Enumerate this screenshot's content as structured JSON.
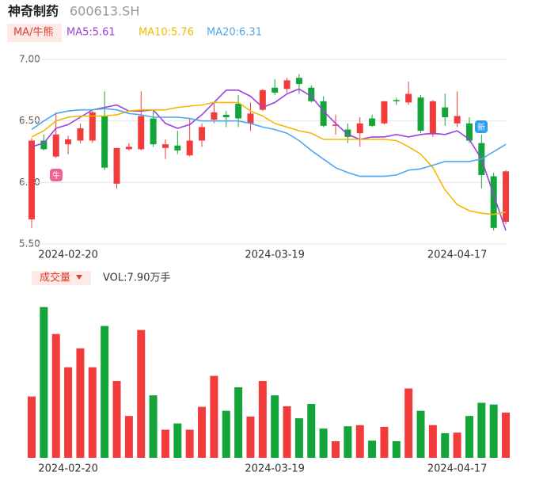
{
  "header": {
    "title": "神奇制药",
    "code": "600613.SH"
  },
  "chart_data": [
    {
      "type": "candlestick",
      "legend_button": "MA/牛熊",
      "annotations": [
        "牛",
        "新"
      ],
      "up_color": "#f23c3c",
      "down_color": "#14a53a",
      "categories": [
        null,
        null,
        null,
        "2024-02-20",
        null,
        null,
        null,
        null,
        null,
        null,
        null,
        null,
        null,
        null,
        null,
        null,
        null,
        null,
        null,
        null,
        "2024-03-19",
        null,
        null,
        null,
        null,
        null,
        null,
        null,
        null,
        null,
        null,
        null,
        null,
        null,
        null,
        "2024-04-17",
        null,
        null,
        null,
        null
      ],
      "open": [
        5.7,
        6.34,
        6.21,
        6.31,
        6.34,
        6.34,
        6.54,
        5.99,
        6.27,
        6.27,
        6.52,
        6.28,
        6.3,
        6.22,
        6.34,
        6.51,
        6.55,
        6.64,
        6.48,
        6.59,
        6.77,
        6.76,
        6.85,
        6.77,
        6.66,
        6.46,
        6.43,
        6.4,
        6.52,
        6.48,
        6.67,
        6.65,
        6.69,
        6.39,
        6.61,
        6.48,
        6.48,
        6.32,
        6.05,
        5.68
      ],
      "high": [
        6.36,
        6.39,
        6.57,
        6.38,
        6.48,
        6.58,
        6.74,
        6.28,
        6.32,
        6.74,
        6.58,
        6.35,
        6.42,
        6.52,
        6.48,
        6.65,
        6.58,
        6.71,
        6.65,
        6.76,
        6.84,
        6.85,
        6.88,
        6.79,
        6.7,
        6.55,
        6.48,
        6.53,
        6.55,
        6.66,
        6.69,
        6.82,
        6.71,
        6.67,
        6.72,
        6.74,
        6.53,
        6.39,
        6.08,
        6.1
      ],
      "low": [
        5.63,
        6.26,
        6.2,
        6.23,
        6.32,
        6.32,
        6.1,
        5.95,
        6.26,
        6.26,
        6.29,
        6.19,
        6.23,
        6.21,
        6.29,
        6.48,
        6.45,
        6.45,
        6.42,
        6.58,
        6.71,
        6.73,
        6.72,
        6.65,
        6.45,
        6.39,
        6.32,
        6.29,
        6.45,
        6.47,
        6.63,
        6.63,
        6.4,
        6.37,
        6.46,
        6.45,
        6.32,
        5.95,
        5.61,
        5.66
      ],
      "close": [
        6.34,
        6.27,
        6.39,
        6.35,
        6.44,
        6.57,
        6.12,
        6.28,
        6.29,
        6.54,
        6.31,
        6.31,
        6.26,
        6.34,
        6.45,
        6.57,
        6.53,
        6.52,
        6.56,
        6.75,
        6.73,
        6.83,
        6.8,
        6.66,
        6.46,
        6.47,
        6.37,
        6.48,
        6.46,
        6.66,
        6.66,
        6.72,
        6.42,
        6.66,
        6.53,
        6.54,
        6.34,
        6.06,
        5.63,
        6.09
      ],
      "series": [
        {
          "name": "MA5:5.61",
          "color": "#a040e0",
          "values": [
            6.29,
            6.32,
            6.44,
            6.47,
            6.53,
            6.59,
            6.61,
            6.63,
            6.58,
            6.58,
            6.59,
            6.48,
            6.44,
            6.47,
            6.55,
            6.65,
            6.75,
            6.75,
            6.7,
            6.61,
            6.65,
            6.72,
            6.76,
            6.7,
            6.58,
            6.48,
            6.39,
            6.35,
            6.37,
            6.37,
            6.39,
            6.37,
            6.39,
            6.4,
            6.39,
            6.42,
            6.35,
            6.19,
            5.9,
            5.61
          ]
        },
        {
          "name": "MA10:5.76",
          "color": "#f5b800",
          "values": [
            6.37,
            6.42,
            6.5,
            6.53,
            6.54,
            6.54,
            6.54,
            6.55,
            6.58,
            6.59,
            6.59,
            6.59,
            6.61,
            6.62,
            6.63,
            6.65,
            6.65,
            6.65,
            6.58,
            6.54,
            6.48,
            6.45,
            6.42,
            6.4,
            6.35,
            6.35,
            6.35,
            6.35,
            6.35,
            6.35,
            6.34,
            6.29,
            6.23,
            6.12,
            5.94,
            5.82,
            5.77,
            5.75,
            5.74,
            5.76
          ]
        },
        {
          "name": "MA20:6.31",
          "color": "#4ea6ee",
          "values": [
            6.43,
            6.5,
            6.56,
            6.58,
            6.59,
            6.59,
            6.6,
            6.59,
            6.56,
            6.55,
            6.53,
            6.53,
            6.53,
            6.52,
            6.5,
            6.5,
            6.5,
            6.5,
            6.48,
            6.45,
            6.43,
            6.4,
            6.34,
            6.26,
            6.19,
            6.12,
            6.08,
            6.05,
            6.05,
            6.05,
            6.06,
            6.1,
            6.11,
            6.14,
            6.17,
            6.17,
            6.17,
            6.19,
            6.25,
            6.31
          ]
        }
      ],
      "ylim": [
        5.5,
        7.0
      ],
      "yticks": [
        {
          "value": 7.0,
          "label": "7.00"
        },
        {
          "value": 6.5,
          "label": "6.50"
        },
        {
          "value": 6.0,
          "label": "6.00"
        },
        {
          "value": 5.5,
          "label": "5.50"
        }
      ],
      "grid": true
    },
    {
      "type": "bar",
      "legend_button": "成交量",
      "legend": "VOL:7.90万手",
      "categories": [
        null,
        null,
        null,
        "2024-02-20",
        null,
        null,
        null,
        null,
        null,
        null,
        null,
        null,
        null,
        null,
        null,
        null,
        null,
        null,
        null,
        null,
        "2024-03-19",
        null,
        null,
        null,
        null,
        null,
        null,
        null,
        null,
        null,
        null,
        null,
        null,
        null,
        null,
        "2024-04-17",
        null,
        null,
        null,
        null
      ],
      "values": [
        10.7,
        26.3,
        21.6,
        15.8,
        19.1,
        15.8,
        23.0,
        13.4,
        7.3,
        22.3,
        10.9,
        4.9,
        6.0,
        4.9,
        8.9,
        14.3,
        8.2,
        12.3,
        7.2,
        13.4,
        10.9,
        9.0,
        6.9,
        9.4,
        5.1,
        2.9,
        5.5,
        5.7,
        3.0,
        5.4,
        2.9,
        12.1,
        8.2,
        5.7,
        4.3,
        4.4,
        7.3,
        9.6,
        9.3,
        7.9
      ],
      "ylim": [
        0,
        27.5
      ]
    }
  ]
}
